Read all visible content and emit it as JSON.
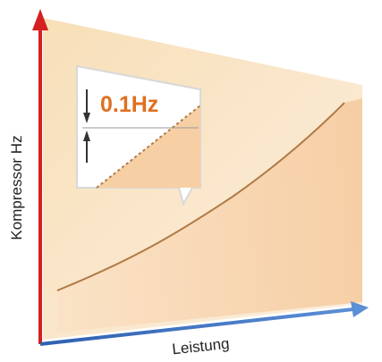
{
  "axes": {
    "y_label": "Kompressor Hz",
    "x_label": "Leistung"
  },
  "callout": {
    "label": "0.1Hz"
  }
}
